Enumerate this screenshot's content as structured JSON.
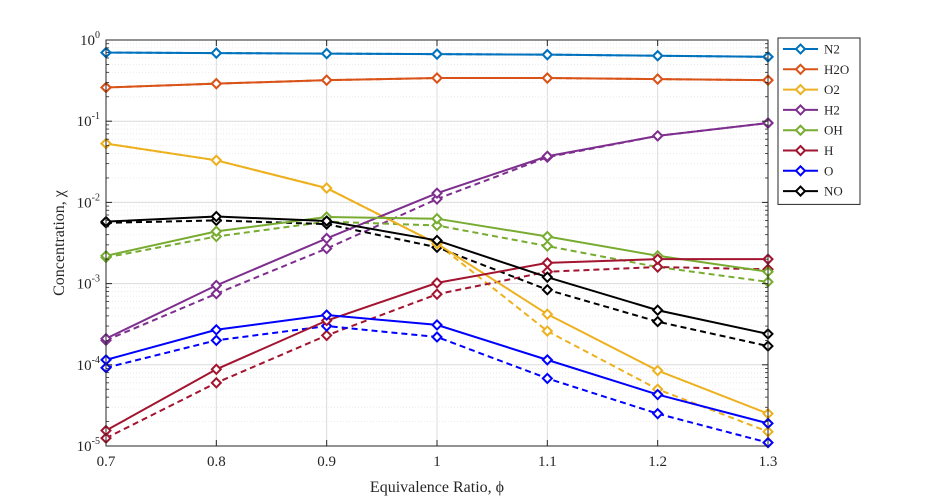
{
  "chart_data": {
    "type": "line",
    "xlabel": "Equivalence Ratio, ϕ",
    "ylabel": "Concentration, χ",
    "xlim": [
      0.7,
      1.3
    ],
    "ylim": [
      1e-05,
      1
    ],
    "yscale": "log",
    "grid": true,
    "legend_position": "outside-right",
    "x": [
      0.7,
      0.8,
      0.9,
      1.0,
      1.1,
      1.2,
      1.3
    ],
    "x_tick_labels": [
      "0.7",
      "0.8",
      "0.9",
      "1",
      "1.1",
      "1.2",
      "1.3"
    ],
    "y_tick_labels": [
      {
        "base": "10",
        "exp": "-5"
      },
      {
        "base": "10",
        "exp": "-4"
      },
      {
        "base": "10",
        "exp": "-3"
      },
      {
        "base": "10",
        "exp": "-2"
      },
      {
        "base": "10",
        "exp": "-1"
      },
      {
        "base": "10",
        "exp": "0"
      }
    ],
    "series": [
      {
        "name": "N2",
        "color": "#0072bd",
        "solid": [
          0.7,
          0.69,
          0.68,
          0.67,
          0.66,
          0.64,
          0.62
        ],
        "dashed": [
          0.7,
          0.69,
          0.68,
          0.67,
          0.66,
          0.64,
          0.62
        ]
      },
      {
        "name": "H2O",
        "color": "#d95319",
        "solid": [
          0.26,
          0.29,
          0.32,
          0.34,
          0.34,
          0.33,
          0.32
        ],
        "dashed": [
          0.26,
          0.29,
          0.32,
          0.34,
          0.34,
          0.33,
          0.32
        ]
      },
      {
        "name": "O2",
        "color": "#edb120",
        "solid": [
          0.053,
          0.033,
          0.015,
          0.0031,
          0.00042,
          8.5e-05,
          2.5e-05
        ],
        "dashed": [
          0.053,
          0.033,
          0.015,
          0.0031,
          0.00026,
          5e-05,
          1.5e-05
        ]
      },
      {
        "name": "H2",
        "color": "#7e2f8e",
        "solid": [
          0.00021,
          0.00095,
          0.0036,
          0.013,
          0.037,
          0.066,
          0.095
        ],
        "dashed": [
          0.0002,
          0.00075,
          0.0027,
          0.011,
          0.036,
          0.066,
          0.095
        ]
      },
      {
        "name": "OH",
        "color": "#77ac30",
        "solid": [
          0.0022,
          0.0044,
          0.0066,
          0.0063,
          0.0038,
          0.0022,
          0.0014
        ],
        "dashed": [
          0.0021,
          0.0038,
          0.0058,
          0.0052,
          0.0029,
          0.0016,
          0.00105
        ]
      },
      {
        "name": "H",
        "color": "#a2142f",
        "solid": [
          1.55e-05,
          8.8e-05,
          0.00035,
          0.00102,
          0.0018,
          0.002,
          0.002
        ],
        "dashed": [
          1.25e-05,
          6e-05,
          0.00023,
          0.00074,
          0.0014,
          0.0016,
          0.0015
        ]
      },
      {
        "name": "O",
        "color": "#0000ff",
        "solid": [
          0.000115,
          0.00027,
          0.00041,
          0.00031,
          0.000115,
          4.3e-05,
          1.9e-05
        ],
        "dashed": [
          9.2e-05,
          0.0002,
          0.0003,
          0.00022,
          6.8e-05,
          2.5e-05,
          1.1e-05
        ]
      },
      {
        "name": "NO",
        "color": "#000000",
        "solid": [
          0.0058,
          0.0067,
          0.0059,
          0.0034,
          0.0012,
          0.00047,
          0.00024
        ],
        "dashed": [
          0.0056,
          0.006,
          0.0054,
          0.0028,
          0.00084,
          0.00034,
          0.00017
        ]
      }
    ]
  }
}
